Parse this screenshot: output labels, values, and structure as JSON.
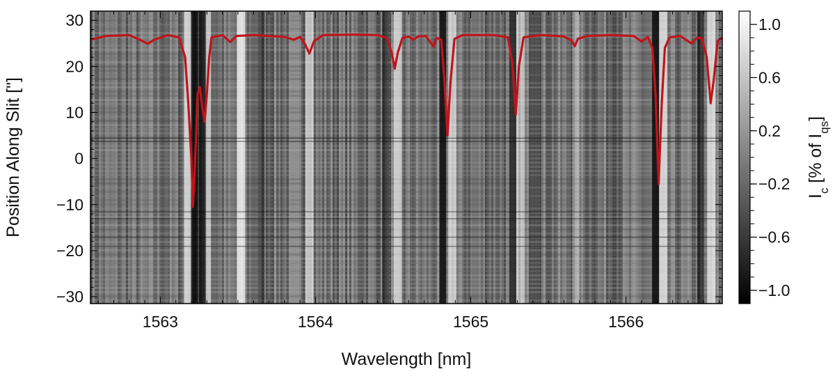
{
  "chart_data": {
    "type": "heatmap",
    "title": "",
    "xlabel": "Wavelength [nm]",
    "ylabel": "Position Along Slit [\"]",
    "xlim": [
      1562.55,
      1566.62
    ],
    "ylim": [
      -31.5,
      32
    ],
    "x_ticks": [
      1563,
      1564,
      1565,
      1566
    ],
    "x_tick_labels": [
      "1563",
      "1564",
      "1565",
      "1566"
    ],
    "y_ticks": [
      -30,
      -20,
      -10,
      0,
      10,
      20,
      30
    ],
    "y_tick_labels": [
      "−30",
      "−20",
      "−10",
      "0",
      "10",
      "20",
      "30"
    ],
    "colorbar": {
      "label_main": "I",
      "label_sub": "c",
      "label_rest": " [% of I",
      "label_sub2": "qs",
      "label_end": "]",
      "range": [
        -1.1,
        1.1
      ],
      "ticks": [
        -1.0,
        -0.6,
        -0.2,
        0.2,
        0.6,
        1.0
      ],
      "tick_labels": [
        "−1.0",
        "−0.6",
        "−0.2",
        "0.2",
        "0.6",
        "1.0"
      ],
      "colormap": "grayscale"
    },
    "overlay_line": {
      "color": "#c0141c",
      "description_units": "y axis units",
      "points": [
        [
          1562.55,
          25.8
        ],
        [
          1562.65,
          26.6
        ],
        [
          1562.8,
          26.8
        ],
        [
          1562.88,
          25.6
        ],
        [
          1562.92,
          24.9
        ],
        [
          1562.96,
          25.8
        ],
        [
          1563.05,
          26.8
        ],
        [
          1563.12,
          26.3
        ],
        [
          1563.16,
          22
        ],
        [
          1563.18,
          12
        ],
        [
          1563.2,
          0
        ],
        [
          1563.21,
          -10.5
        ],
        [
          1563.225,
          0
        ],
        [
          1563.24,
          14
        ],
        [
          1563.255,
          15.5
        ],
        [
          1563.27,
          11
        ],
        [
          1563.285,
          8
        ],
        [
          1563.3,
          14
        ],
        [
          1563.315,
          22
        ],
        [
          1563.33,
          26.3
        ],
        [
          1563.4,
          26.8
        ],
        [
          1563.45,
          25.3
        ],
        [
          1563.49,
          26.6
        ],
        [
          1563.6,
          26.8
        ],
        [
          1563.7,
          26.6
        ],
        [
          1563.8,
          26.4
        ],
        [
          1563.86,
          25.8
        ],
        [
          1563.9,
          26.4
        ],
        [
          1563.93,
          25.0
        ],
        [
          1563.96,
          22.8
        ],
        [
          1563.99,
          25.5
        ],
        [
          1564.05,
          26.8
        ],
        [
          1564.25,
          26.9
        ],
        [
          1564.4,
          26.8
        ],
        [
          1564.46,
          26.2
        ],
        [
          1564.49,
          23
        ],
        [
          1564.51,
          19.5
        ],
        [
          1564.53,
          23
        ],
        [
          1564.56,
          26.2
        ],
        [
          1564.6,
          26.5
        ],
        [
          1564.63,
          25.8
        ],
        [
          1564.66,
          26.5
        ],
        [
          1564.71,
          26.6
        ],
        [
          1564.74,
          25.2
        ],
        [
          1564.76,
          24.3
        ],
        [
          1564.78,
          26.2
        ],
        [
          1564.81,
          25.8
        ],
        [
          1564.83,
          17
        ],
        [
          1564.85,
          5
        ],
        [
          1564.87,
          17
        ],
        [
          1564.895,
          26
        ],
        [
          1564.95,
          26.8
        ],
        [
          1565.15,
          26.8
        ],
        [
          1565.24,
          26.3
        ],
        [
          1565.27,
          20
        ],
        [
          1565.29,
          9.5
        ],
        [
          1565.31,
          20
        ],
        [
          1565.34,
          26.3
        ],
        [
          1565.45,
          26.8
        ],
        [
          1565.6,
          26.5
        ],
        [
          1565.65,
          25.6
        ],
        [
          1565.67,
          24.4
        ],
        [
          1565.69,
          26.0
        ],
        [
          1565.75,
          26.6
        ],
        [
          1565.9,
          26.8
        ],
        [
          1566.05,
          26.6
        ],
        [
          1566.1,
          25.4
        ],
        [
          1566.14,
          26.4
        ],
        [
          1566.17,
          24
        ],
        [
          1566.19,
          14
        ],
        [
          1566.21,
          -5.5
        ],
        [
          1566.23,
          12
        ],
        [
          1566.25,
          24
        ],
        [
          1566.28,
          26.3
        ],
        [
          1566.35,
          26.6
        ],
        [
          1566.42,
          25.0
        ],
        [
          1566.46,
          26.3
        ],
        [
          1566.49,
          26
        ],
        [
          1566.52,
          22
        ],
        [
          1566.545,
          12
        ],
        [
          1566.565,
          17
        ],
        [
          1566.59,
          25.5
        ],
        [
          1566.62,
          26.3
        ]
      ]
    },
    "bright_bands": [
      [
        1563.18,
        0.9
      ],
      [
        1563.3,
        0.8
      ],
      [
        1563.52,
        1.0
      ],
      [
        1563.96,
        0.85
      ],
      [
        1564.53,
        0.7
      ],
      [
        1564.88,
        0.85
      ],
      [
        1565.32,
        0.7
      ],
      [
        1565.68,
        0.4
      ],
      [
        1566.24,
        0.8
      ],
      [
        1566.55,
        0.9
      ]
    ],
    "dark_bands": [
      [
        1563.22,
        1.0
      ],
      [
        1563.27,
        1.0
      ],
      [
        1563.65,
        0.5
      ],
      [
        1564.45,
        0.6
      ],
      [
        1564.82,
        1.0
      ],
      [
        1565.27,
        0.8
      ],
      [
        1566.19,
        1.0
      ],
      [
        1566.48,
        0.7
      ]
    ]
  }
}
